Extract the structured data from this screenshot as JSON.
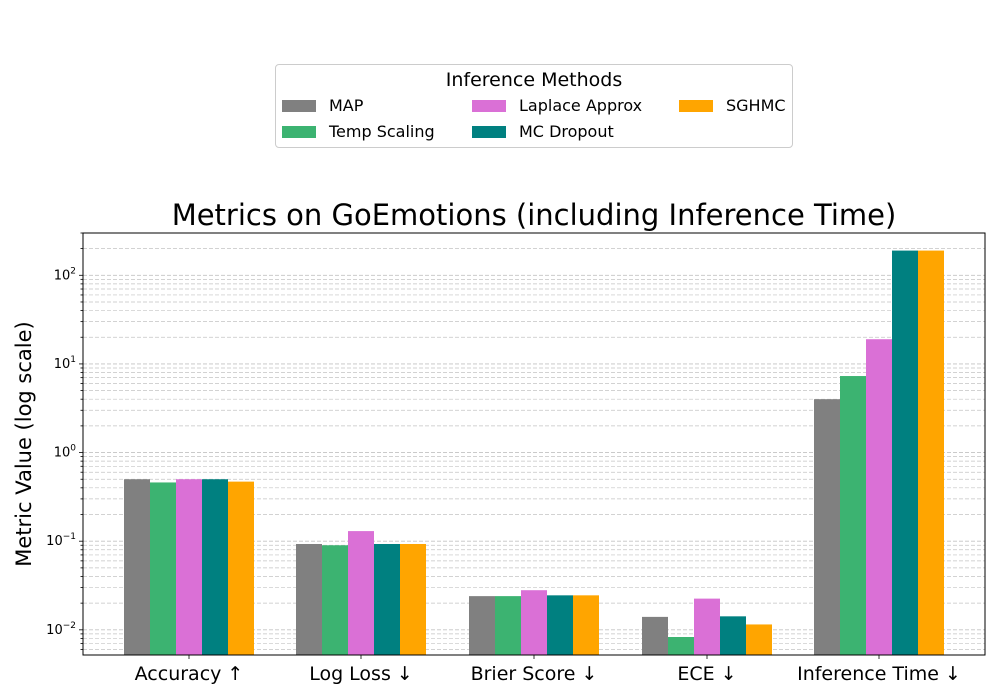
{
  "chart_data": {
    "type": "bar",
    "title": "Metrics on GoEmotions (including Inference Time)",
    "xlabel": "",
    "ylabel": "Metric Value (log scale)",
    "yscale": "log",
    "ylim": [
      0.0052,
      300
    ],
    "grid": "y major and minor, dashed",
    "categories": [
      "Accuracy ↑",
      "Log Loss ↓",
      "Brier Score ↓",
      "ECE ↓",
      "Inference Time ↓"
    ],
    "y_ticks": [
      {
        "base": "10",
        "exp": "−2",
        "value": 0.01
      },
      {
        "base": "10",
        "exp": "−1",
        "value": 0.1
      },
      {
        "base": "10",
        "exp": "0",
        "value": 1
      },
      {
        "base": "10",
        "exp": "1",
        "value": 10
      },
      {
        "base": "10",
        "exp": "2",
        "value": 100
      }
    ],
    "legend": {
      "title": "Inference Methods",
      "placement": "top-center above plot",
      "ncol": 3
    },
    "series": [
      {
        "name": "MAP",
        "color": "#808080",
        "values": [
          0.5,
          0.093,
          0.024,
          0.014,
          4.0
        ]
      },
      {
        "name": "Temp Scaling",
        "color": "#3cb371",
        "values": [
          0.46,
          0.09,
          0.024,
          0.0083,
          7.3
        ]
      },
      {
        "name": "Laplace Approx",
        "color": "#da70d6",
        "values": [
          0.5,
          0.13,
          0.028,
          0.0225,
          19.0
        ]
      },
      {
        "name": "MC Dropout",
        "color": "#008080",
        "values": [
          0.5,
          0.093,
          0.0245,
          0.0142,
          190
        ]
      },
      {
        "name": "SGHMC",
        "color": "#ffa500",
        "values": [
          0.47,
          0.093,
          0.0245,
          0.0115,
          190
        ]
      }
    ]
  }
}
